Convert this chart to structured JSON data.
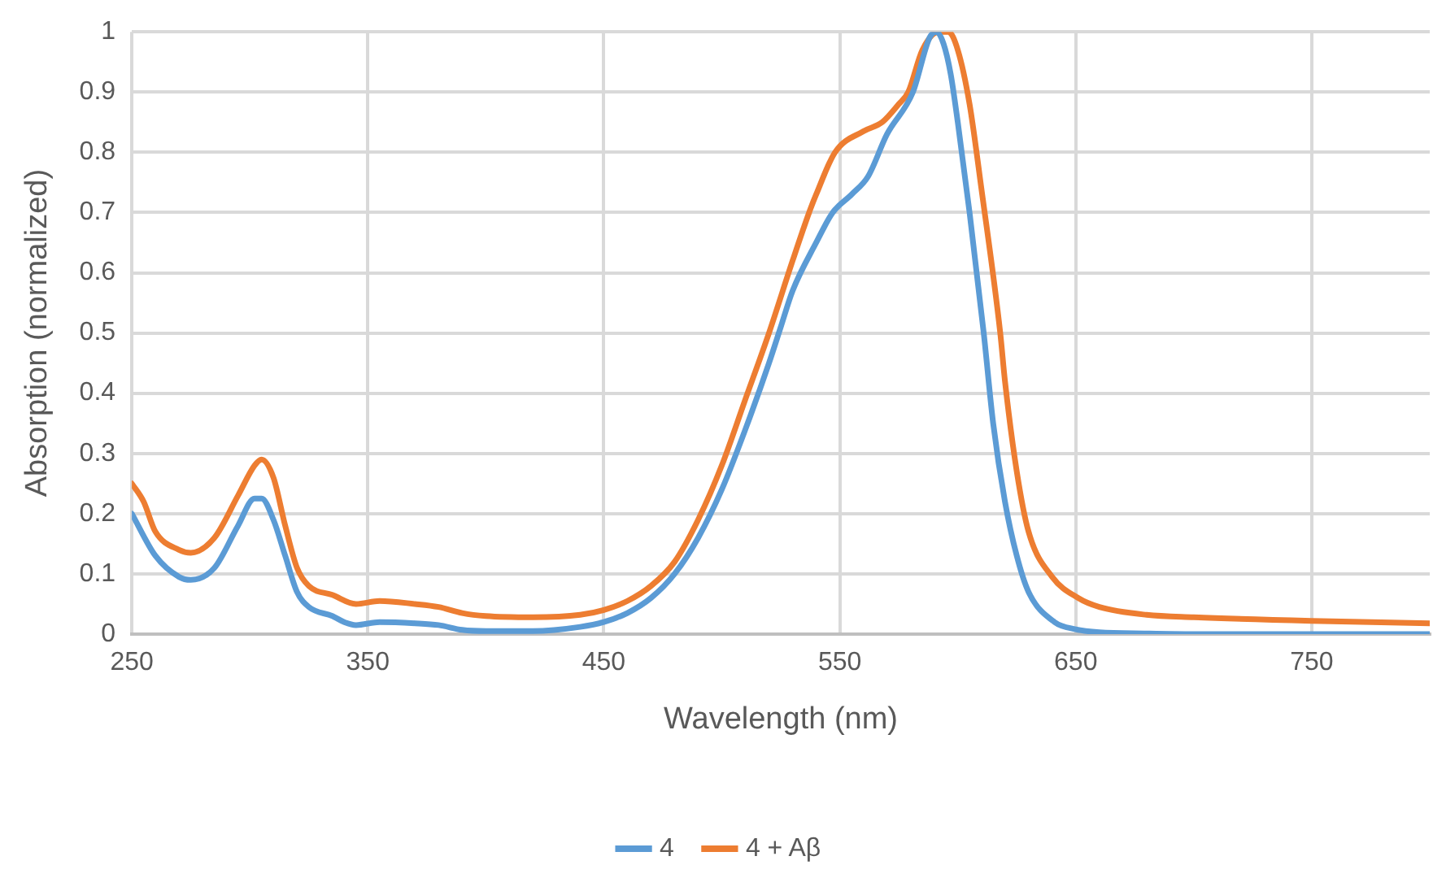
{
  "chart_data": {
    "type": "line",
    "xlabel": "Wavelength (nm)",
    "ylabel": "Absorption (normalized)",
    "xlim": [
      250,
      800
    ],
    "xticks": [
      250,
      350,
      450,
      550,
      650,
      750
    ],
    "ylim": [
      0,
      1
    ],
    "yticks": [
      0,
      0.1,
      0.2,
      0.3,
      0.4,
      0.5,
      0.6,
      0.7,
      0.8,
      0.9,
      1
    ],
    "grid": true,
    "legend": "bottom",
    "marker": "none",
    "line_style": "solid",
    "series": [
      {
        "name": "4",
        "color": "#5b9bd5",
        "x": [
          250,
          260,
          270,
          275,
          285,
          295,
          302,
          305,
          310,
          315,
          320,
          325,
          335,
          340,
          345,
          355,
          370,
          380,
          390,
          400,
          420,
          440,
          450,
          460,
          470,
          480,
          490,
          500,
          510,
          520,
          525,
          530,
          540,
          547,
          555,
          562,
          570,
          581,
          588,
          591,
          594,
          597,
          600,
          605,
          611,
          615,
          620,
          625,
          630,
          641,
          650,
          660,
          680,
          700,
          800
        ],
        "values": [
          0.2,
          0.13,
          0.095,
          0.09,
          0.11,
          0.18,
          0.225,
          0.225,
          0.19,
          0.13,
          0.07,
          0.045,
          0.03,
          0.02,
          0.015,
          0.02,
          0.018,
          0.015,
          0.007,
          0.005,
          0.005,
          0.012,
          0.02,
          0.035,
          0.06,
          0.1,
          0.16,
          0.24,
          0.34,
          0.45,
          0.51,
          0.57,
          0.65,
          0.7,
          0.73,
          0.76,
          0.83,
          0.9,
          0.99,
          1,
          0.98,
          0.93,
          0.85,
          0.7,
          0.5,
          0.35,
          0.22,
          0.13,
          0.07,
          0.02,
          0.008,
          0.003,
          0.001,
          0,
          0
        ]
      },
      {
        "name": "4 + Aβ",
        "color": "#ed7d31",
        "x": [
          250,
          255,
          260,
          270,
          275,
          285,
          295,
          302,
          305,
          310,
          315,
          320,
          325,
          335,
          345,
          355,
          370,
          380,
          390,
          400,
          420,
          440,
          450,
          460,
          470,
          480,
          490,
          500,
          510,
          520,
          530,
          537,
          540,
          548,
          560,
          568,
          575,
          579,
          585,
          592,
          596,
          600,
          605,
          610,
          618,
          620,
          625,
          630,
          640,
          651,
          660,
          680,
          700,
          750,
          800
        ],
        "values": [
          0.25,
          0.22,
          0.17,
          0.14,
          0.135,
          0.16,
          0.23,
          0.28,
          0.29,
          0.26,
          0.18,
          0.11,
          0.08,
          0.065,
          0.05,
          0.055,
          0.05,
          0.045,
          0.035,
          0.03,
          0.028,
          0.032,
          0.04,
          0.055,
          0.08,
          0.12,
          0.19,
          0.28,
          0.39,
          0.5,
          0.62,
          0.7,
          0.73,
          0.8,
          0.835,
          0.85,
          0.88,
          0.9,
          0.97,
          1,
          1,
          0.97,
          0.88,
          0.74,
          0.5,
          0.42,
          0.27,
          0.17,
          0.095,
          0.06,
          0.045,
          0.032,
          0.028,
          0.022,
          0.018
        ]
      }
    ]
  }
}
